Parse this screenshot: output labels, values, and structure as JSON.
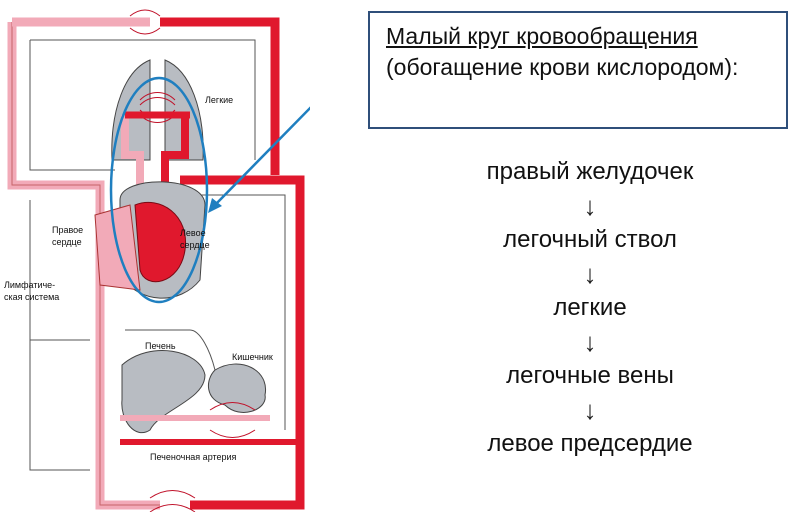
{
  "callout": {
    "title": "Малый круг кровообращения",
    "subtitle": "(обогащение крови кислородом):"
  },
  "steps": [
    "правый желудочек",
    "легочный ствол",
    "легкие",
    "легочные вены",
    "левое предсердие"
  ],
  "arrow_glyph": "↓",
  "diagram": {
    "lungs": "Легкие",
    "right_heart_1": "Правое",
    "right_heart_2": "сердце",
    "left_heart_1": "Левое",
    "left_heart_2": "сердце",
    "lymph_1": "Лимфатиче-",
    "lymph_2": "ская система",
    "liver": "Печень",
    "intestine": "Кишечник",
    "hepatic_artery": "Печеночная артерия"
  },
  "colors": {
    "arterial": "#e0182d",
    "venous": "#f2aab8",
    "organ_gray": "#b8bcc2",
    "ellipse": "#1f7fc0",
    "box_border": "#2f4f7a"
  }
}
